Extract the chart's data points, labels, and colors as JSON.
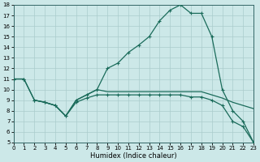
{
  "xlabel": "Humidex (Indice chaleur)",
  "xlim": [
    0,
    23
  ],
  "ylim": [
    5,
    18
  ],
  "xticks": [
    0,
    1,
    2,
    3,
    4,
    5,
    6,
    7,
    8,
    9,
    10,
    11,
    12,
    13,
    14,
    15,
    16,
    17,
    18,
    19,
    20,
    21,
    22,
    23
  ],
  "yticks": [
    5,
    6,
    7,
    8,
    9,
    10,
    11,
    12,
    13,
    14,
    15,
    16,
    17,
    18
  ],
  "bg_color": "#cce8e8",
  "line_color": "#1a6b5a",
  "grid_color": "#aacccc",
  "lineA_x": [
    0,
    1,
    2,
    3,
    4,
    5,
    6,
    7,
    8,
    9,
    10,
    11,
    12,
    13,
    14,
    15,
    16,
    17,
    18,
    19,
    20,
    21,
    22,
    23
  ],
  "lineA_y": [
    11,
    11,
    9,
    8.8,
    8.5,
    7.5,
    9,
    9.5,
    10,
    12,
    12.5,
    13.5,
    14.2,
    15,
    16.5,
    17.5,
    18,
    17.2,
    17.2,
    15,
    10,
    8,
    7,
    5
  ],
  "lineB_x": [
    0,
    1,
    2,
    3,
    4,
    5,
    6,
    7,
    8,
    9,
    10,
    11,
    12,
    13,
    14,
    15,
    16,
    17,
    18,
    19,
    20,
    21,
    22,
    23
  ],
  "lineB_y": [
    11,
    11,
    9,
    8.8,
    8.5,
    7.5,
    8.8,
    9.2,
    9.5,
    9.5,
    9.5,
    9.5,
    9.5,
    9.5,
    9.5,
    9.5,
    9.5,
    9.3,
    9.3,
    9.0,
    8.5,
    7.0,
    6.5,
    5
  ],
  "lineC_x": [
    2,
    3,
    4,
    5,
    6,
    7,
    8,
    9,
    10,
    11,
    12,
    13,
    14,
    15,
    16,
    17,
    18,
    19,
    20,
    21,
    22,
    23
  ],
  "lineC_y": [
    9,
    8.8,
    8.5,
    7.5,
    9.0,
    9.5,
    10,
    9.8,
    9.8,
    9.8,
    9.8,
    9.8,
    9.8,
    9.8,
    9.8,
    9.8,
    9.8,
    9.5,
    9.2,
    8.8,
    8.5,
    8.2
  ]
}
